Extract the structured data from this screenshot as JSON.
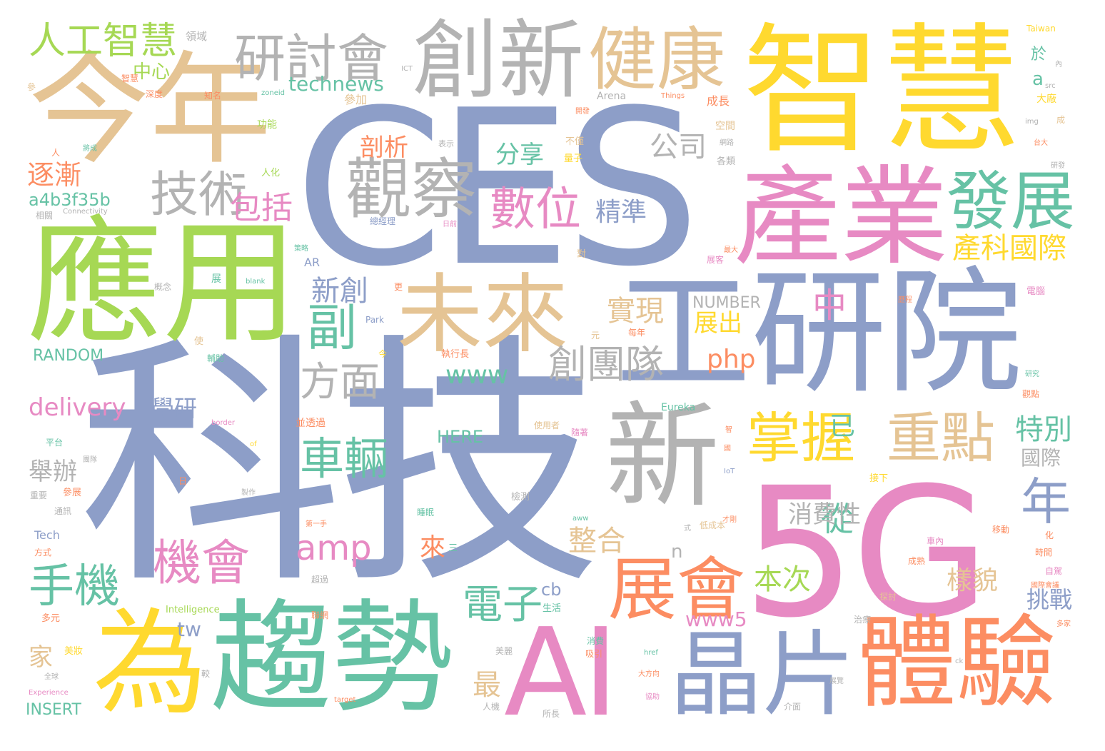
{
  "colors": {
    "blue": "#8d9ec8",
    "yellow": "#ffd92f",
    "tan": "#e5c494",
    "green": "#a6d854",
    "teal": "#66c2a5",
    "pink": "#e78ac3",
    "orange": "#fc8d62",
    "gray": "#b3b3b3"
  },
  "words": {
    "w1": "科技",
    "w2": "CES",
    "w3": "工研院",
    "w4": "5G",
    "w5": "應用",
    "w6": "今年",
    "w7": "智慧",
    "w8": "產業",
    "w9": "趨勢",
    "w10": "為",
    "w11": "AI",
    "w12": "體驗",
    "w13": "晶片",
    "w14": "新",
    "w15": "未來",
    "w16": "創新",
    "w17": "健康",
    "w18": "觀察",
    "w19": "展會",
    "w20": "發展",
    "w21": "研討會",
    "w22": "人工智慧",
    "w23": "技術",
    "w24": "數位",
    "w25": "掌握",
    "w26": "重點",
    "w27": "機會",
    "w28": "手機",
    "w29": "車輛",
    "w30": "方面",
    "w31": "創團隊",
    "w32": "電子",
    "w33": "副",
    "w34": "年",
    "w35": "amp",
    "w36": "從",
    "w37": "technews",
    "w38": "逐漸",
    "w39": "a4b3f35b",
    "w40": "包括",
    "w41": "剖析",
    "w42": "公司",
    "w43": "分享",
    "w44": "精準",
    "w45": "產科國際",
    "w46": "新創",
    "w47": "實現",
    "w48": "展出",
    "w49": "php",
    "w50": "www",
    "w51": "NUMBER",
    "w52": "中",
    "w53": "RANDOM",
    "w54": "delivery",
    "w55": "學研",
    "w56": "舉辦",
    "w57": "特別",
    "w58": "國際",
    "w59": "消費性",
    "w60": "整合",
    "w61": "來",
    "w62": "本次",
    "w63": "樣貌",
    "w64": "挑戰",
    "w65": "cb",
    "w66": "tw",
    "w67": "www5",
    "w68": "家",
    "w69": "最",
    "w70": "已",
    "w71": "INSERT",
    "w72": "HERE",
    "w73": "中心",
    "w74": "功能",
    "w75": "參加",
    "w76": "成長",
    "w77": "空間",
    "w78": "於",
    "w79": "a",
    "w80": "大廠",
    "w81": "n",
    "w82": "Eureka",
    "w83": "Taiwan",
    "w84": "Arena",
    "w85": "Things",
    "w86": "Tech",
    "w87": "Park",
    "w88": "Intelligence",
    "w89": "Experience",
    "w90": "Connectivity",
    "w91": "IoT",
    "w92": "AR",
    "w93": "blank",
    "w94": "ICT",
    "w95": "zoneid",
    "w96": "img",
    "w97": "src",
    "w98": "href",
    "w99": "border",
    "w100": "target",
    "w101": "ck",
    "w102": "aww",
    "w103": "of",
    "w104": "領域",
    "w105": "知名",
    "w106": "參",
    "w107": "深度",
    "w108": "表示",
    "w109": "不僅",
    "w110": "量子",
    "w111": "各類",
    "w112": "人化",
    "w113": "相關",
    "w114": "總經理",
    "w115": "日前",
    "w116": "最大",
    "w117": "對",
    "w118": "策略",
    "w119": "概念",
    "w120": "展",
    "w121": "展客",
    "w122": "電腦",
    "w123": "輔助",
    "w124": "使",
    "w125": "每年",
    "w126": "執行長",
    "w127": "元",
    "w128": "研究",
    "w129": "觀點",
    "w130": "平台",
    "w131": "團隊",
    "w132": "重要",
    "w133": "參展",
    "w134": "通訊",
    "w135": "方式",
    "w136": "並透過",
    "w137": "使用者",
    "w138": "接下",
    "w139": "檢測",
    "w140": "睡眠",
    "w141": "低成本",
    "w142": "車內",
    "w143": "移動",
    "w144": "時間",
    "w145": "自駕",
    "w146": "成熟",
    "w147": "國際會議",
    "w148": "探討",
    "w149": "治療",
    "w150": "生活",
    "w151": "聯網",
    "w152": "超過",
    "w153": "第一手",
    "w154": "多元",
    "w155": "美妝",
    "w156": "美麗",
    "w157": "吸引",
    "w158": "消費",
    "w159": "較",
    "w160": "全球",
    "w161": "人機",
    "w162": "所長",
    "w163": "介面",
    "w164": "展覽",
    "w165": "協助",
    "w166": "智慧",
    "w167": "三",
    "w168": "今",
    "w169": "日",
    "w170": "成",
    "w171": "大方向",
    "w172": "多家",
    "w173": "網路",
    "w174": "台大",
    "w175": "更",
    "w176": "研發",
    "w177": "人",
    "w178": "將成",
    "w179": "開發",
    "w180": "智",
    "w181": "內",
    "w182": "化",
    "w183": "式",
    "w184": "才剛",
    "w185": "歷程",
    "w186": "國",
    "w187": "製作",
    "w188": "隨著"
  }
}
